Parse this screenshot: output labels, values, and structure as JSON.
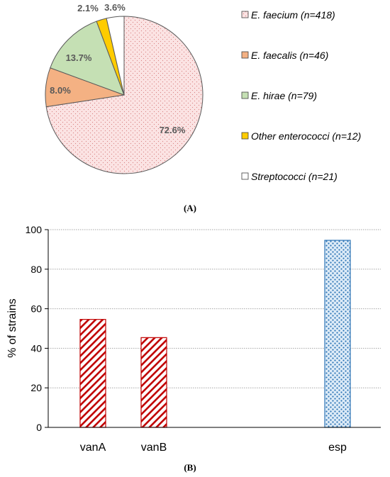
{
  "chart_data": [
    {
      "type": "pie",
      "panel_label": "(A)",
      "slices": [
        {
          "label": "E. faecium (n=418)",
          "value": 72.6,
          "label_text": "72.6%",
          "color": "#fbe3e3"
        },
        {
          "label": "E. faecalis (n=46)",
          "value": 8.0,
          "label_text": "8.0%",
          "color": "#f4b183"
        },
        {
          "label": "E. hirae (n=79)",
          "value": 13.7,
          "label_text": "13.7%",
          "color": "#c5e0b4"
        },
        {
          "label": "Other enterococci (n=12)",
          "value": 2.1,
          "label_text": "2.1%",
          "color": "#ffcc00"
        },
        {
          "label": "Streptococci (n=21)",
          "value": 3.6,
          "label_text": "3.6%",
          "color": "#ffffff"
        }
      ],
      "legend_position": "right"
    },
    {
      "type": "bar",
      "panel_label": "(B)",
      "categories": [
        "vanA",
        "vanB",
        "esp"
      ],
      "values": [
        54.6,
        45.4,
        94.6
      ],
      "ylabel": "% of strains",
      "ylim": [
        0,
        100
      ],
      "yticks": [
        0,
        20,
        40,
        60,
        80,
        100
      ],
      "grid": true,
      "bar_styles": [
        "red-diagonal-hatch",
        "red-diagonal-hatch",
        "blue-dots"
      ],
      "colors": {
        "hatch": "#c00000",
        "dots": "#2e75b6",
        "dots_bg": "#ddebf7"
      }
    }
  ]
}
